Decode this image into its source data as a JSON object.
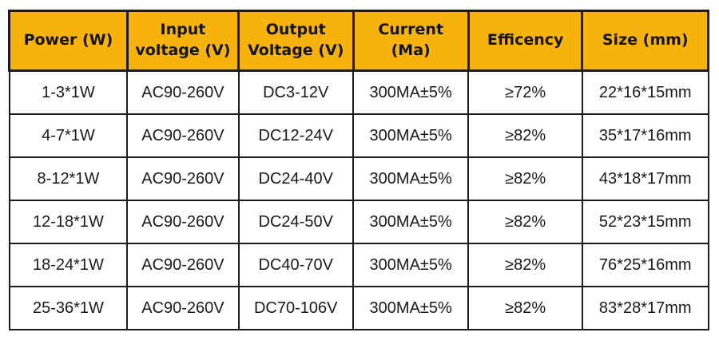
{
  "colors": {
    "header_bg": "#f7b30c",
    "border": "#1c1c1c",
    "body_text": "#1a1a1a"
  },
  "table": {
    "columns": [
      {
        "id": "power",
        "lines": [
          "Power (W)"
        ]
      },
      {
        "id": "input_voltage",
        "lines": [
          "Input",
          "voltage (V)"
        ]
      },
      {
        "id": "output_voltage",
        "lines": [
          "Output",
          "Voltage (V)"
        ]
      },
      {
        "id": "current",
        "lines": [
          "Current",
          "(Ma)"
        ]
      },
      {
        "id": "efficiency",
        "lines": [
          "Efficency"
        ]
      },
      {
        "id": "size",
        "lines": [
          "Size (mm)"
        ]
      }
    ],
    "rows": [
      [
        "1-3*1W",
        "AC90-260V",
        "DC3-12V",
        "300MA±5%",
        "≥72%",
        "22*16*15mm"
      ],
      [
        "4-7*1W",
        "AC90-260V",
        "DC12-24V",
        "300MA±5%",
        "≥82%",
        "35*17*16mm"
      ],
      [
        "8-12*1W",
        "AC90-260V",
        "DC24-40V",
        "300MA±5%",
        "≥82%",
        "43*18*17mm"
      ],
      [
        "12-18*1W",
        "AC90-260V",
        "DC24-50V",
        "300MA±5%",
        "≥82%",
        "52*23*15mm"
      ],
      [
        "18-24*1W",
        "AC90-260V",
        "DC40-70V",
        "300MA±5%",
        "≥82%",
        "76*25*16mm"
      ],
      [
        "25-36*1W",
        "AC90-260V",
        "DC70-106V",
        "300MA±5%",
        "≥82%",
        "83*28*17mm"
      ]
    ]
  }
}
